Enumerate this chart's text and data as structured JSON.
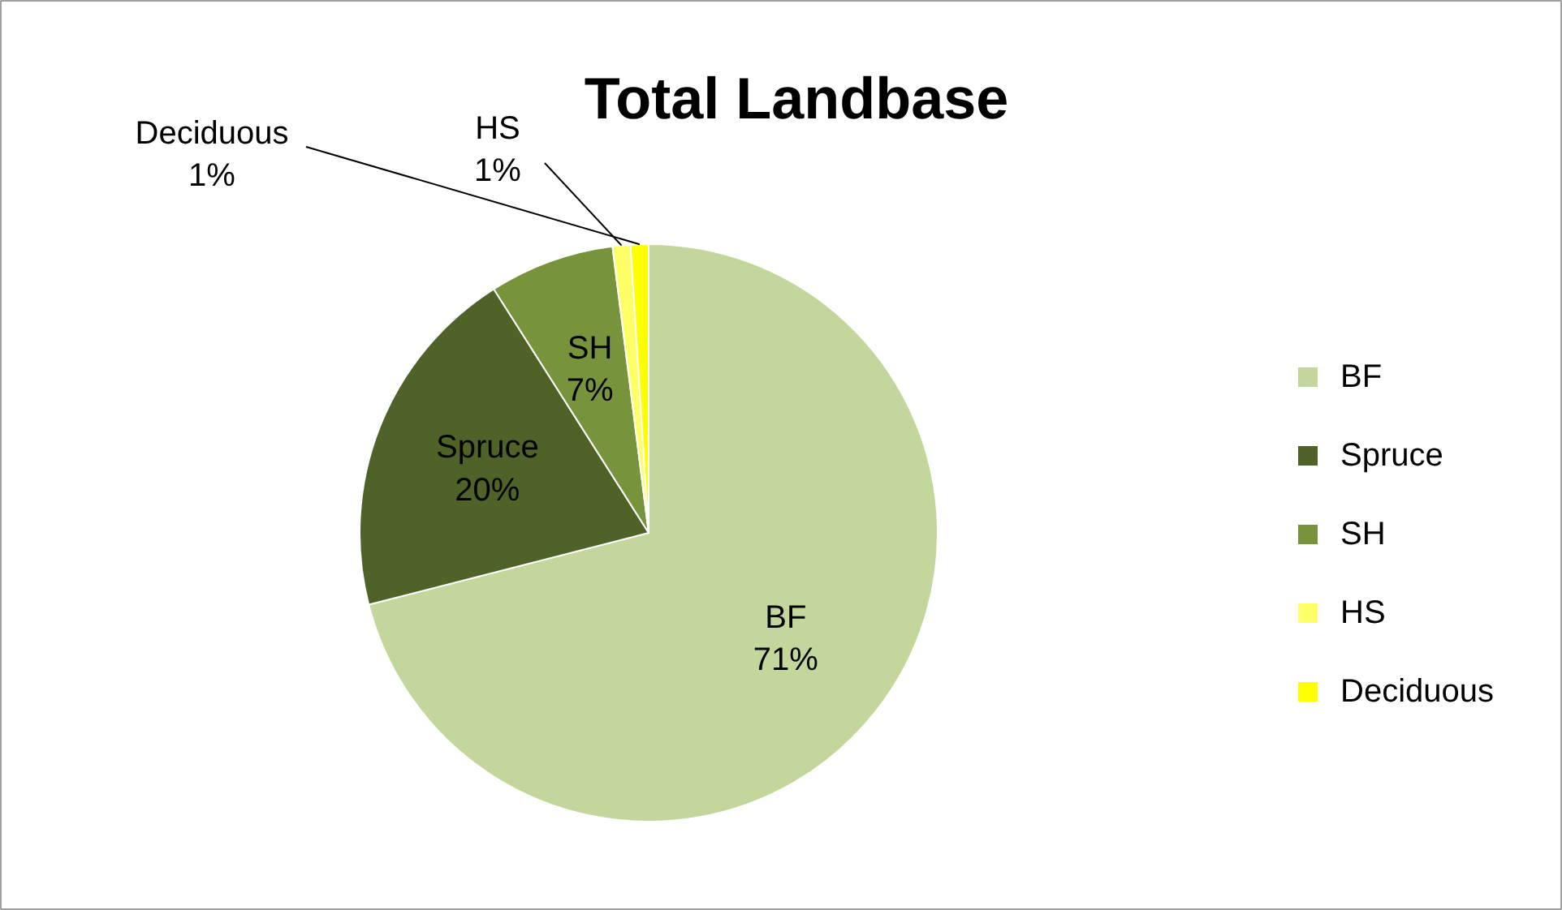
{
  "chart_data": {
    "type": "pie",
    "title": "Total Landbase",
    "categories": [
      "BF",
      "Spruce",
      "SH",
      "HS",
      "Deciduous"
    ],
    "values": [
      71,
      20,
      7,
      1,
      1
    ],
    "value_labels": [
      "71%",
      "20%",
      "7%",
      "1%",
      "1%"
    ],
    "colors": [
      "#c3d69b",
      "#4f6228",
      "#77933c",
      "#ffff66",
      "#ffff00"
    ],
    "legend": "right"
  }
}
